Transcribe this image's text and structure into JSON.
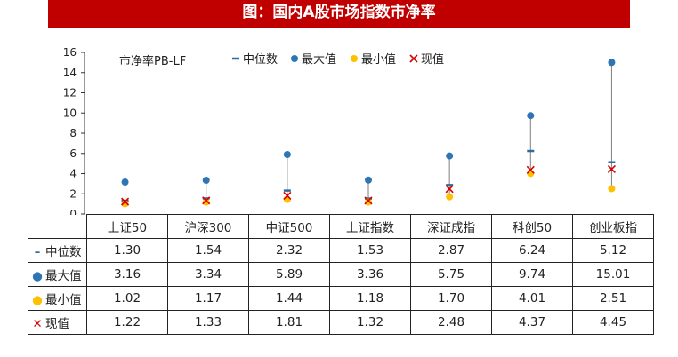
{
  "title": "图：国内A股市场指数市净率",
  "colors": {
    "banner": "#c00000",
    "median": "#2e6b9e",
    "max": "#2e75b6",
    "min": "#ffc000",
    "current": "#d90000",
    "stem": "#7f7f7f"
  },
  "chart_data": {
    "type": "scatter",
    "title": "图：国内A股市场指数市净率",
    "ylabel": "市净率PB-LF",
    "ylim": [
      0,
      16
    ],
    "yticks": [
      0,
      2,
      4,
      6,
      8,
      10,
      12,
      14,
      16
    ],
    "categories": [
      "上证50",
      "沪深300",
      "中证500",
      "上证指数",
      "深证成指",
      "科创50",
      "创业板指"
    ],
    "legend_position": "top",
    "series": [
      {
        "name": "中位数",
        "marker": "dash",
        "values": [
          1.3,
          1.54,
          2.32,
          1.53,
          2.87,
          6.24,
          5.12
        ]
      },
      {
        "name": "最大值",
        "marker": "circle",
        "values": [
          3.16,
          3.34,
          5.89,
          3.36,
          5.75,
          9.74,
          15.01
        ]
      },
      {
        "name": "最小值",
        "marker": "circle",
        "values": [
          1.02,
          1.17,
          1.44,
          1.18,
          1.7,
          4.01,
          2.51
        ]
      },
      {
        "name": "现值",
        "marker": "x",
        "values": [
          1.22,
          1.33,
          1.81,
          1.32,
          2.48,
          4.37,
          4.45
        ]
      }
    ],
    "table": {
      "rows": [
        {
          "label": "中位数",
          "values": [
            "1.30",
            "1.54",
            "2.32",
            "1.53",
            "2.87",
            "6.24",
            "5.12"
          ]
        },
        {
          "label": "最大值",
          "values": [
            "3.16",
            "3.34",
            "5.89",
            "3.36",
            "5.75",
            "9.74",
            "15.01"
          ]
        },
        {
          "label": "最小值",
          "values": [
            "1.02",
            "1.17",
            "1.44",
            "1.18",
            "1.70",
            "4.01",
            "2.51"
          ]
        },
        {
          "label": "现值",
          "values": [
            "1.22",
            "1.33",
            "1.81",
            "1.32",
            "2.48",
            "4.37",
            "4.45"
          ]
        }
      ]
    }
  }
}
